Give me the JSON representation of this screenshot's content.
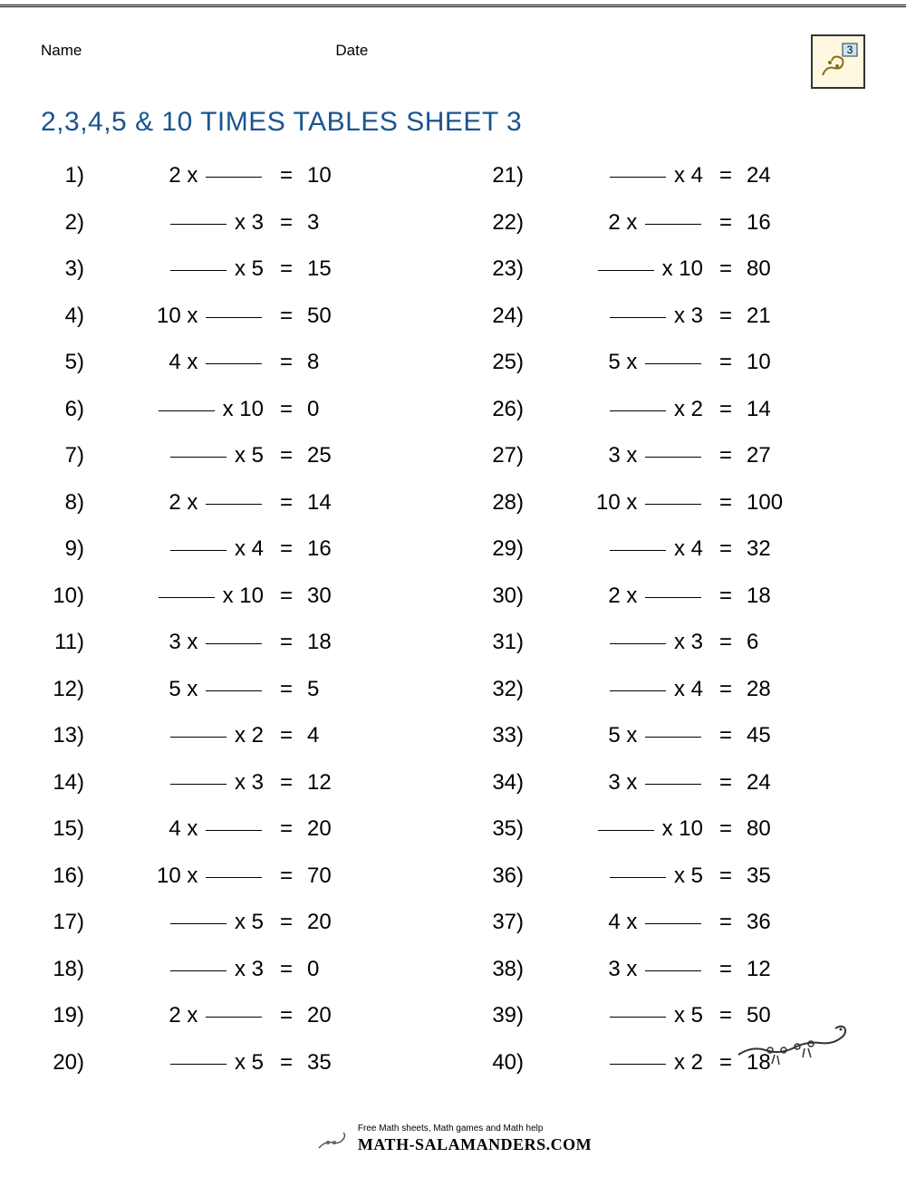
{
  "header": {
    "name_label": "Name",
    "date_label": "Date",
    "badge_number": "3"
  },
  "title": "2,3,4,5 & 10 TIMES TABLES SHEET 3",
  "title_color": "#1a5490",
  "font_family": "Verdana, Geneva, sans-serif",
  "problem_font_size": 24,
  "title_font_size": 30,
  "background_color": "#ffffff",
  "problems_left": [
    {
      "n": "1)",
      "type": "after",
      "a": "2",
      "b": "",
      "ans": "10"
    },
    {
      "n": "2)",
      "type": "before",
      "a": "",
      "b": "3",
      "ans": "3"
    },
    {
      "n": "3)",
      "type": "before",
      "a": "",
      "b": "5",
      "ans": "15"
    },
    {
      "n": "4)",
      "type": "after",
      "a": "10",
      "b": "",
      "ans": "50"
    },
    {
      "n": "5)",
      "type": "after",
      "a": "4",
      "b": "",
      "ans": "8"
    },
    {
      "n": "6)",
      "type": "before",
      "a": "",
      "b": "10",
      "ans": "0"
    },
    {
      "n": "7)",
      "type": "before",
      "a": "",
      "b": "5",
      "ans": "25"
    },
    {
      "n": "8)",
      "type": "after",
      "a": "2",
      "b": "",
      "ans": "14"
    },
    {
      "n": "9)",
      "type": "before",
      "a": "",
      "b": "4",
      "ans": "16"
    },
    {
      "n": "10)",
      "type": "before",
      "a": "",
      "b": "10",
      "ans": "30"
    },
    {
      "n": "11)",
      "type": "after",
      "a": "3",
      "b": "",
      "ans": "18"
    },
    {
      "n": "12)",
      "type": "after",
      "a": "5",
      "b": "",
      "ans": "5"
    },
    {
      "n": "13)",
      "type": "before",
      "a": "",
      "b": "2",
      "ans": "4"
    },
    {
      "n": "14)",
      "type": "before",
      "a": "",
      "b": "3",
      "ans": "12"
    },
    {
      "n": "15)",
      "type": "after",
      "a": "4",
      "b": "",
      "ans": "20"
    },
    {
      "n": "16)",
      "type": "after",
      "a": "10",
      "b": "",
      "ans": "70"
    },
    {
      "n": "17)",
      "type": "before",
      "a": "",
      "b": "5",
      "ans": "20"
    },
    {
      "n": "18)",
      "type": "before",
      "a": "",
      "b": "3",
      "ans": "0"
    },
    {
      "n": "19)",
      "type": "after",
      "a": "2",
      "b": "",
      "ans": "20"
    },
    {
      "n": "20)",
      "type": "before",
      "a": "",
      "b": "5",
      "ans": "35"
    }
  ],
  "problems_right": [
    {
      "n": "21)",
      "type": "before",
      "a": "",
      "b": "4",
      "ans": "24"
    },
    {
      "n": "22)",
      "type": "after",
      "a": "2",
      "b": "",
      "ans": "16"
    },
    {
      "n": "23)",
      "type": "before",
      "a": "",
      "b": "10",
      "ans": "80"
    },
    {
      "n": "24)",
      "type": "before",
      "a": "",
      "b": "3",
      "ans": "21"
    },
    {
      "n": "25)",
      "type": "after",
      "a": "5",
      "b": "",
      "ans": "10"
    },
    {
      "n": "26)",
      "type": "before",
      "a": "",
      "b": "2",
      "ans": "14"
    },
    {
      "n": "27)",
      "type": "after",
      "a": "3",
      "b": "",
      "ans": "27"
    },
    {
      "n": "28)",
      "type": "after",
      "a": "10",
      "b": "",
      "ans": "100"
    },
    {
      "n": "29)",
      "type": "before",
      "a": "",
      "b": "4",
      "ans": "32"
    },
    {
      "n": "30)",
      "type": "after",
      "a": "2",
      "b": "",
      "ans": "18"
    },
    {
      "n": "31)",
      "type": "before",
      "a": "",
      "b": "3",
      "ans": "6"
    },
    {
      "n": "32)",
      "type": "before",
      "a": "",
      "b": "4",
      "ans": "28"
    },
    {
      "n": "33)",
      "type": "after",
      "a": "5",
      "b": "",
      "ans": "45"
    },
    {
      "n": "34)",
      "type": "after",
      "a": "3",
      "b": "",
      "ans": "24"
    },
    {
      "n": "35)",
      "type": "before",
      "a": "",
      "b": "10",
      "ans": "80"
    },
    {
      "n": "36)",
      "type": "before",
      "a": "",
      "b": "5",
      "ans": "35"
    },
    {
      "n": "37)",
      "type": "after",
      "a": "4",
      "b": "",
      "ans": "36"
    },
    {
      "n": "38)",
      "type": "after",
      "a": "3",
      "b": "",
      "ans": "12"
    },
    {
      "n": "39)",
      "type": "before",
      "a": "",
      "b": "5",
      "ans": "50"
    },
    {
      "n": "40)",
      "type": "before",
      "a": "",
      "b": "2",
      "ans": "18"
    }
  ],
  "footer": {
    "tagline": "Free Math sheets, Math games and Math help",
    "url": "MATH-SALAMANDERS.COM"
  }
}
